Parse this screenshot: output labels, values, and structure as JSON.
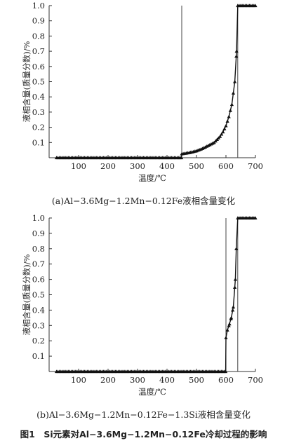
{
  "figure_caption": "图1　Si元素对Al−3.6Mg−1.2Mn−0.12Fe冷却过程的影响",
  "chart_data": [
    {
      "type": "line",
      "caption": "(a)Al−3.6Mg−1.2Mn−0.12Fe液相含量变化",
      "xlabel": "温度/℃",
      "ylabel": "液相含量(质量分数)/%",
      "xlim": [
        0,
        700
      ],
      "ylim": [
        0,
        1.0
      ],
      "xticks": [
        "100",
        "200",
        "300",
        "400",
        "500",
        "600",
        "700"
      ],
      "yticks": [
        "0.1",
        "0.2",
        "0.3",
        "0.4",
        "0.5",
        "0.6",
        "0.7",
        "0.8",
        "0.9",
        "1.0"
      ],
      "grid": false,
      "legend": "none",
      "marker": "triangle",
      "vlines": [
        450,
        640
      ],
      "x": [
        25,
        100,
        200,
        300,
        400,
        449,
        450,
        480,
        500,
        520,
        540,
        560,
        580,
        590,
        600,
        610,
        620,
        630,
        636,
        640,
        660,
        680,
        700
      ],
      "y": [
        0,
        0,
        0,
        0,
        0,
        0,
        0.025,
        0.035,
        0.045,
        0.06,
        0.08,
        0.1,
        0.14,
        0.17,
        0.21,
        0.27,
        0.35,
        0.5,
        0.7,
        1.0,
        1.0,
        1.0,
        1.0
      ]
    },
    {
      "type": "line",
      "caption": "(b)Al−3.6Mg−1.2Mn−0.12Fe−1.3Si液相含量变化",
      "xlabel": "温度/℃",
      "ylabel": "液相含量(质量分数)/%",
      "xlim": [
        0,
        700
      ],
      "ylim": [
        0,
        1.0
      ],
      "xticks": [
        "100",
        "200",
        "300",
        "400",
        "500",
        "600",
        "700"
      ],
      "yticks": [
        "0.1",
        "0.2",
        "0.3",
        "0.4",
        "0.5",
        "0.6",
        "0.7",
        "0.8",
        "0.9",
        "1.0"
      ],
      "grid": false,
      "legend": "none",
      "marker": "triangle",
      "vlines": [
        600,
        640
      ],
      "x": [
        25,
        100,
        200,
        300,
        400,
        500,
        599,
        600,
        605,
        612,
        618,
        625,
        632,
        635,
        640,
        660,
        680,
        700
      ],
      "y": [
        0,
        0,
        0,
        0,
        0,
        0,
        0,
        0.22,
        0.27,
        0.31,
        0.35,
        0.42,
        0.6,
        0.8,
        1.0,
        1.0,
        1.0,
        1.0
      ]
    }
  ]
}
